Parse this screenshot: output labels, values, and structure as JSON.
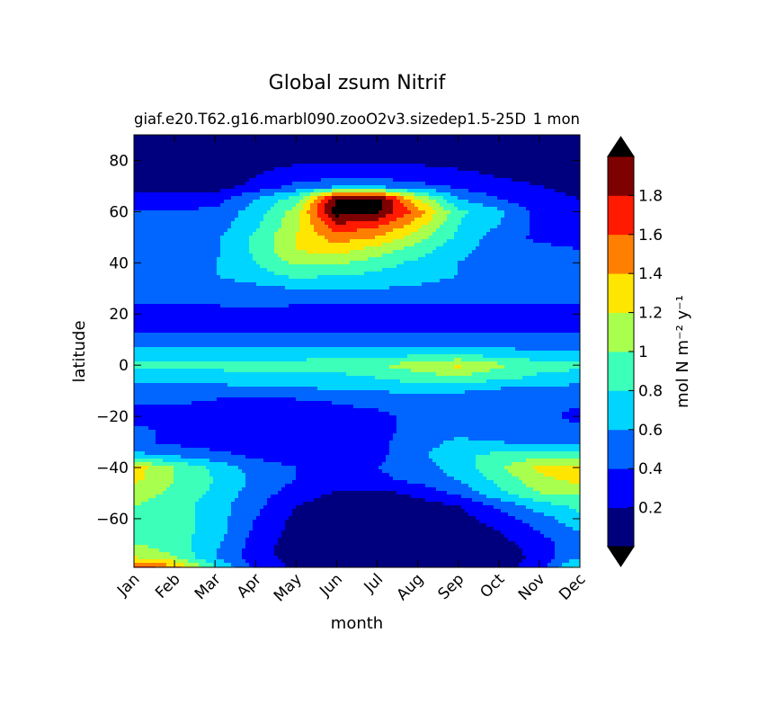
{
  "figure": {
    "suptitle": "Global zsum Nitrif",
    "subtitle_left": "giaf.e20.T62.g16.marbl090.zooO2v3.sizedep1.5-25D",
    "subtitle_right": "1 mon"
  },
  "chart_data": {
    "type": "heatmap",
    "subtype": "filled-contour",
    "title": "Global zsum Nitrif",
    "xlabel": "month",
    "ylabel": "latitude",
    "x_categories": [
      "Jan",
      "Feb",
      "Mar",
      "Apr",
      "May",
      "Jun",
      "Jul",
      "Aug",
      "Sep",
      "Oct",
      "Nov",
      "Dec"
    ],
    "y_ticks": [
      -60,
      -40,
      -20,
      0,
      20,
      40,
      60,
      80
    ],
    "y_tick_labels": [
      "−60",
      "−40",
      "−20",
      "0",
      "20",
      "40",
      "60",
      "80"
    ],
    "ylim": [
      -79,
      90
    ],
    "colorbar": {
      "label": "mol N m⁻² y⁻¹",
      "levels": [
        0,
        0.2,
        0.4,
        0.6,
        0.8,
        1.0,
        1.2,
        1.4,
        1.6,
        1.8,
        2.0
      ],
      "tick_values": [
        0.2,
        0.4,
        0.6,
        0.8,
        1.0,
        1.2,
        1.4,
        1.6,
        1.8
      ],
      "tick_labels": [
        "0.2",
        "0.4",
        "0.6",
        "0.8",
        "1",
        "1.2",
        "1.4",
        "1.6",
        "1.8"
      ],
      "colors": [
        "#00007f",
        "#0000ff",
        "#0066ff",
        "#00d5ff",
        "#3cffba",
        "#a8ff4d",
        "#ffe600",
        "#ff8000",
        "#ff1a00",
        "#7f0000"
      ],
      "extend_min_color": "#000000",
      "extend_max_color": "#000000"
    },
    "field": {
      "months": [
        0,
        1,
        2,
        3,
        4,
        5,
        6,
        7,
        8,
        9,
        10,
        11
      ],
      "latitudes": [
        90,
        80,
        70,
        65,
        60,
        55,
        50,
        45,
        40,
        35,
        30,
        25,
        20,
        15,
        10,
        5,
        0,
        -5,
        -10,
        -15,
        -20,
        -25,
        -30,
        -35,
        -40,
        -45,
        -50,
        -55,
        -60,
        -65,
        -70,
        -75,
        -79
      ],
      "values": [
        [
          0.1,
          0.1,
          0.1,
          0.1,
          0.1,
          0.1,
          0.1,
          0.1,
          0.1,
          0.1,
          0.1,
          0.1
        ],
        [
          0.1,
          0.1,
          0.1,
          0.1,
          0.15,
          0.15,
          0.15,
          0.15,
          0.12,
          0.1,
          0.1,
          0.1
        ],
        [
          0.1,
          0.1,
          0.1,
          0.25,
          0.45,
          0.5,
          0.5,
          0.45,
          0.35,
          0.25,
          0.2,
          0.15
        ],
        [
          0.3,
          0.3,
          0.3,
          0.6,
          0.9,
          2.05,
          2.1,
          1.2,
          0.6,
          0.4,
          0.25,
          0.2
        ],
        [
          0.4,
          0.4,
          0.45,
          0.7,
          1.1,
          2.1,
          2.05,
          1.5,
          0.85,
          0.65,
          0.3,
          0.25
        ],
        [
          0.45,
          0.45,
          0.5,
          0.75,
          1.15,
          1.8,
          1.65,
          1.3,
          0.8,
          0.6,
          0.35,
          0.3
        ],
        [
          0.5,
          0.5,
          0.55,
          0.85,
          1.2,
          1.5,
          1.4,
          1.1,
          0.75,
          0.5,
          0.35,
          0.35
        ],
        [
          0.55,
          0.55,
          0.55,
          0.85,
          1.2,
          1.3,
          1.1,
          0.9,
          0.65,
          0.5,
          0.45,
          0.4
        ],
        [
          0.55,
          0.55,
          0.6,
          0.8,
          1.05,
          1.05,
          0.9,
          0.75,
          0.6,
          0.55,
          0.5,
          0.45
        ],
        [
          0.55,
          0.55,
          0.6,
          0.7,
          0.85,
          0.8,
          0.75,
          0.65,
          0.6,
          0.55,
          0.55,
          0.5
        ],
        [
          0.45,
          0.45,
          0.5,
          0.55,
          0.6,
          0.6,
          0.6,
          0.58,
          0.55,
          0.52,
          0.5,
          0.45
        ],
        [
          0.42,
          0.42,
          0.45,
          0.45,
          0.45,
          0.45,
          0.45,
          0.45,
          0.45,
          0.45,
          0.42,
          0.42
        ],
        [
          0.3,
          0.3,
          0.3,
          0.35,
          0.3,
          0.3,
          0.3,
          0.3,
          0.3,
          0.3,
          0.3,
          0.3
        ],
        [
          0.3,
          0.3,
          0.3,
          0.3,
          0.3,
          0.3,
          0.3,
          0.3,
          0.3,
          0.3,
          0.3,
          0.3
        ],
        [
          0.5,
          0.5,
          0.5,
          0.5,
          0.5,
          0.5,
          0.5,
          0.5,
          0.5,
          0.5,
          0.5,
          0.5
        ],
        [
          0.65,
          0.65,
          0.65,
          0.65,
          0.65,
          0.65,
          0.65,
          0.7,
          0.7,
          0.65,
          0.62,
          0.62
        ],
        [
          0.85,
          0.85,
          0.85,
          0.9,
          0.9,
          0.95,
          1.0,
          1.1,
          1.25,
          1.05,
          0.9,
          0.85
        ],
        [
          0.7,
          0.7,
          0.7,
          0.75,
          0.7,
          0.7,
          0.8,
          0.9,
          0.95,
          0.85,
          0.75,
          0.7
        ],
        [
          0.5,
          0.5,
          0.5,
          0.5,
          0.55,
          0.6,
          0.6,
          0.65,
          0.62,
          0.55,
          0.5,
          0.5
        ],
        [
          0.42,
          0.42,
          0.35,
          0.3,
          0.32,
          0.4,
          0.45,
          0.5,
          0.5,
          0.45,
          0.42,
          0.42
        ],
        [
          0.3,
          0.3,
          0.3,
          0.3,
          0.3,
          0.3,
          0.35,
          0.45,
          0.45,
          0.45,
          0.45,
          0.35
        ],
        [
          0.45,
          0.35,
          0.3,
          0.3,
          0.3,
          0.3,
          0.35,
          0.45,
          0.5,
          0.45,
          0.45,
          0.45
        ],
        [
          0.45,
          0.35,
          0.3,
          0.3,
          0.3,
          0.3,
          0.35,
          0.5,
          0.65,
          0.6,
          0.55,
          0.55
        ],
        [
          0.65,
          0.55,
          0.45,
          0.35,
          0.3,
          0.3,
          0.35,
          0.55,
          0.75,
          0.85,
          0.9,
          0.85
        ],
        [
          1.3,
          1.0,
          0.75,
          0.5,
          0.4,
          0.35,
          0.4,
          0.5,
          0.7,
          0.95,
          1.25,
          1.3
        ],
        [
          1.25,
          1.0,
          0.8,
          0.55,
          0.4,
          0.3,
          0.35,
          0.45,
          0.6,
          0.85,
          1.15,
          1.25
        ],
        [
          1.1,
          0.95,
          0.75,
          0.5,
          0.3,
          0.18,
          0.15,
          0.25,
          0.45,
          0.75,
          1.0,
          1.05
        ],
        [
          1.0,
          0.9,
          0.7,
          0.45,
          0.2,
          0.1,
          0.08,
          0.1,
          0.2,
          0.45,
          0.7,
          0.85
        ],
        [
          1.0,
          0.9,
          0.7,
          0.4,
          0.15,
          0.08,
          0.05,
          0.05,
          0.12,
          0.3,
          0.5,
          0.75
        ],
        [
          0.95,
          0.9,
          0.7,
          0.35,
          0.12,
          0.05,
          0.05,
          0.05,
          0.08,
          0.2,
          0.4,
          0.6
        ],
        [
          1.0,
          0.9,
          0.65,
          0.3,
          0.1,
          0.05,
          0.05,
          0.05,
          0.05,
          0.12,
          0.3,
          0.55
        ],
        [
          1.2,
          1.0,
          0.6,
          0.3,
          0.1,
          0.05,
          0.05,
          0.05,
          0.05,
          0.1,
          0.25,
          0.6
        ],
        [
          1.7,
          1.5,
          0.8,
          0.35,
          0.15,
          0.05,
          0.05,
          0.05,
          0.05,
          0.1,
          0.3,
          0.9
        ]
      ]
    }
  }
}
